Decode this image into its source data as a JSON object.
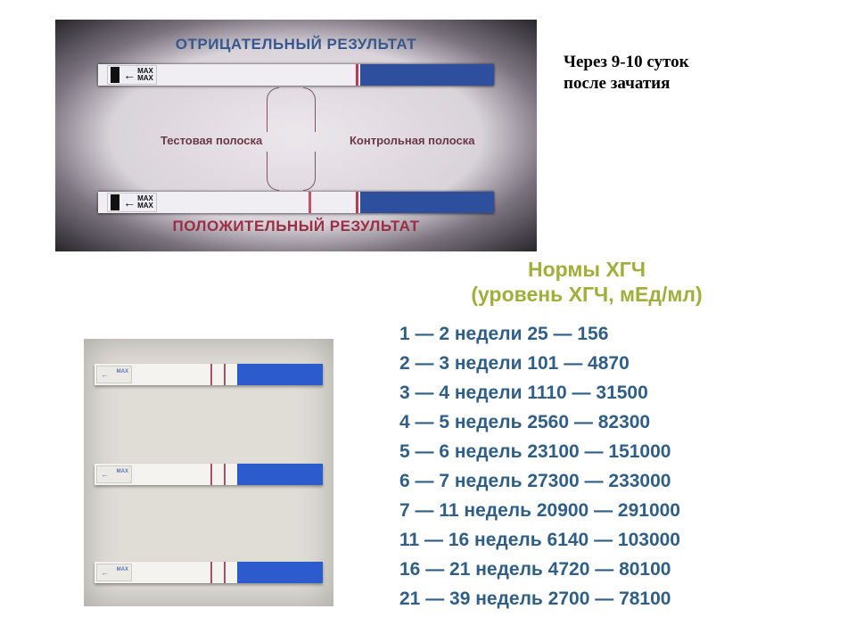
{
  "caption": "Через 9-10 суток\nпосле зачатия",
  "diagram": {
    "neg_title": "ОТРИЦАТЕЛЬНЫЙ РЕЗУЛЬТАТ",
    "pos_title": "ПОЛОЖИТЕЛЬНЫЙ РЕЗУЛЬТАТ",
    "test_label": "Тестовая полоска",
    "ctrl_label": "Контрольная полоска",
    "max_text": "MAX",
    "neg_title_color": "#37588f",
    "pos_title_color": "#9b2e44",
    "line_color": "#b83a54",
    "cap_color": "#2d4f9e",
    "strip_color": "#f0eef2"
  },
  "photo": {
    "background": "#dfddd6",
    "cap_color": "#2c5bce",
    "line_color": "#a94e6a",
    "max_text": "MAX"
  },
  "hcg": {
    "title_line1": "Нормы ХГЧ",
    "title_line2": "(уровень ХГЧ, мЕд/мл)",
    "title_color": "#a0ae3a",
    "row_color": "#2f5e87",
    "rows": [
      {
        "w_from": "1",
        "w_to": "2",
        "unit": "недели",
        "lo": "25",
        "hi": "156"
      },
      {
        "w_from": "2",
        "w_to": "3",
        "unit": "недели",
        "lo": "101",
        "hi": "4870"
      },
      {
        "w_from": "3",
        "w_to": "4",
        "unit": "недели",
        "lo": "1110",
        "hi": "31500"
      },
      {
        "w_from": "4",
        "w_to": "5",
        "unit": "недель",
        "lo": "2560",
        "hi": "82300"
      },
      {
        "w_from": "5",
        "w_to": "6",
        "unit": "недель",
        "lo": "23100",
        "hi": "151000"
      },
      {
        "w_from": "6",
        "w_to": "7",
        "unit": "недель",
        "lo": "27300",
        "hi": "233000"
      },
      {
        "w_from": "7",
        "w_to": "11",
        "unit": "недель",
        "lo": "20900",
        "hi": "291000"
      },
      {
        "w_from": "11",
        "w_to": "16",
        "unit": "недель",
        "lo": "6140",
        "hi": "103000"
      },
      {
        "w_from": "16",
        "w_to": "21",
        "unit": "недель",
        "lo": "4720",
        "hi": "80100"
      },
      {
        "w_from": "21",
        "w_to": "39",
        "unit": "недель",
        "lo": "2700",
        "hi": "78100"
      }
    ]
  }
}
